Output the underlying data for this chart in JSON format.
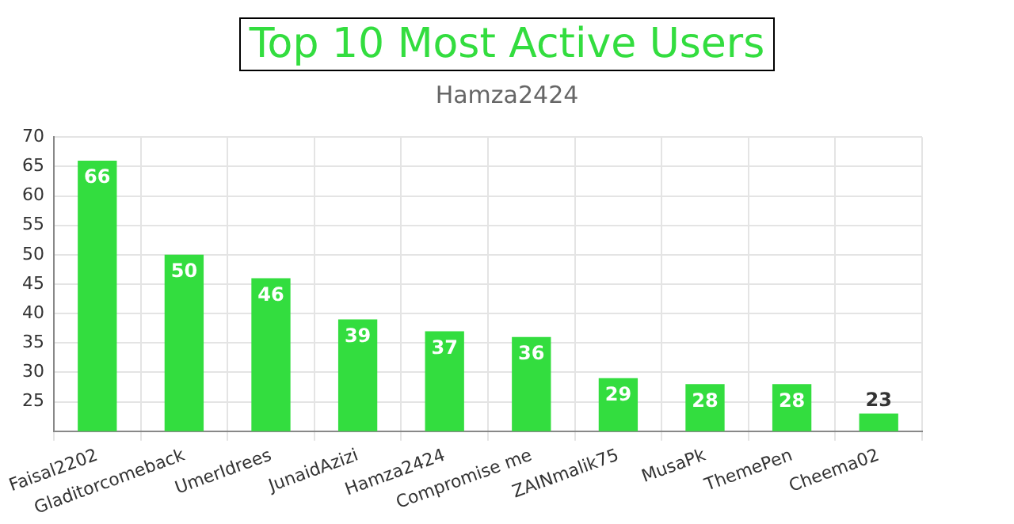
{
  "chart_data": {
    "type": "bar",
    "title": "Top 10 Most Active Users",
    "subtitle": "Hamza2424",
    "categories": [
      "Faisal2202",
      "Gladitorcomeback",
      "UmerIdrees",
      "JunaidAzizi",
      "Hamza2424",
      "Compromise me",
      "ZAINmalik75",
      "MusaPk",
      "ThemePen",
      "Cheema02"
    ],
    "values": [
      66,
      50,
      46,
      39,
      37,
      36,
      29,
      28,
      28,
      23
    ],
    "color": "#33dd3f",
    "ylim": [
      20,
      70
    ],
    "yticks": [
      25,
      30,
      35,
      40,
      45,
      50,
      55,
      60,
      65,
      70
    ],
    "grid": true,
    "data_labels": true
  }
}
